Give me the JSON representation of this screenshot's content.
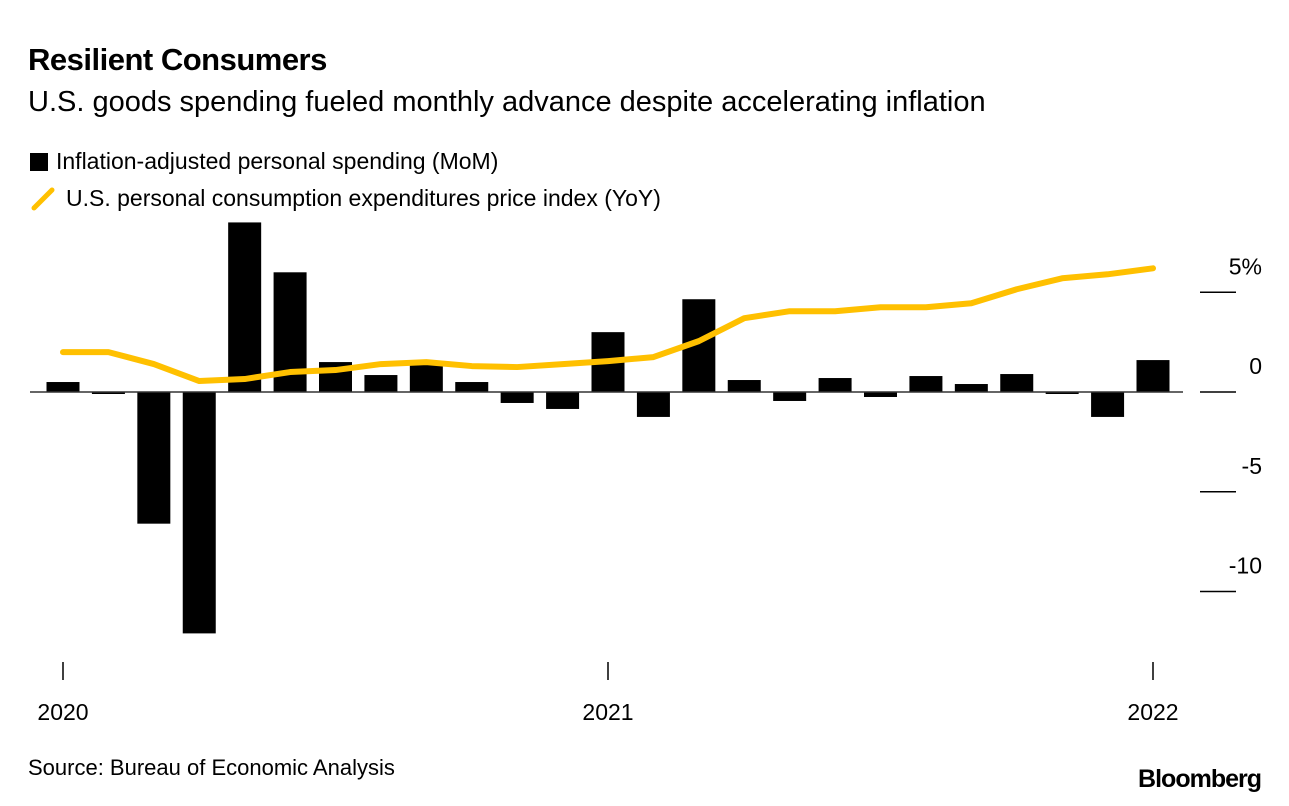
{
  "header": {
    "title": "Resilient Consumers",
    "subtitle": "U.S. goods spending fueled monthly advance despite accelerating inflation"
  },
  "footer": {
    "source": "Source: Bureau of Economic Analysis",
    "logo": "Bloomberg"
  },
  "chart_data": {
    "type": "bar+line",
    "title": "Resilient Consumers",
    "subtitle": "U.S. goods spending fueled monthly advance despite accelerating inflation",
    "x": [
      "2020-01",
      "2020-02",
      "2020-03",
      "2020-04",
      "2020-05",
      "2020-06",
      "2020-07",
      "2020-08",
      "2020-09",
      "2020-10",
      "2020-11",
      "2020-12",
      "2021-01",
      "2021-02",
      "2021-03",
      "2021-04",
      "2021-05",
      "2021-06",
      "2021-07",
      "2021-08",
      "2021-09",
      "2021-10",
      "2021-11",
      "2021-12",
      "2022-01"
    ],
    "x_tick_labels": [
      "2020",
      "2021",
      "2022"
    ],
    "y_tick_labels": [
      "5%",
      "0",
      "-5",
      "-10"
    ],
    "y_ticks": [
      5,
      0,
      -5,
      -10
    ],
    "ylim": [
      -13.5,
      9
    ],
    "y_axis_side": "right",
    "grid": false,
    "legend_placement": "top-left",
    "series": [
      {
        "name": "Inflation-adjusted personal spending (MoM)",
        "type": "bar",
        "color": "#000000",
        "values": [
          0.5,
          -0.1,
          -6.6,
          -12.1,
          8.5,
          6.0,
          1.5,
          0.85,
          1.4,
          0.5,
          -0.55,
          -0.85,
          3.0,
          -1.25,
          4.65,
          0.6,
          -0.45,
          0.7,
          -0.25,
          0.8,
          0.4,
          0.9,
          -0.1,
          -1.25,
          1.6
        ]
      },
      {
        "name": "U.S. personal consumption expenditures price index (YoY)",
        "type": "line",
        "color": "#FFC000",
        "values": [
          2.0,
          2.0,
          1.4,
          0.55,
          0.65,
          1.0,
          1.1,
          1.4,
          1.5,
          1.3,
          1.25,
          1.4,
          1.55,
          1.75,
          2.55,
          3.7,
          4.05,
          4.05,
          4.25,
          4.25,
          4.45,
          5.15,
          5.7,
          5.9,
          6.2
        ]
      }
    ]
  }
}
